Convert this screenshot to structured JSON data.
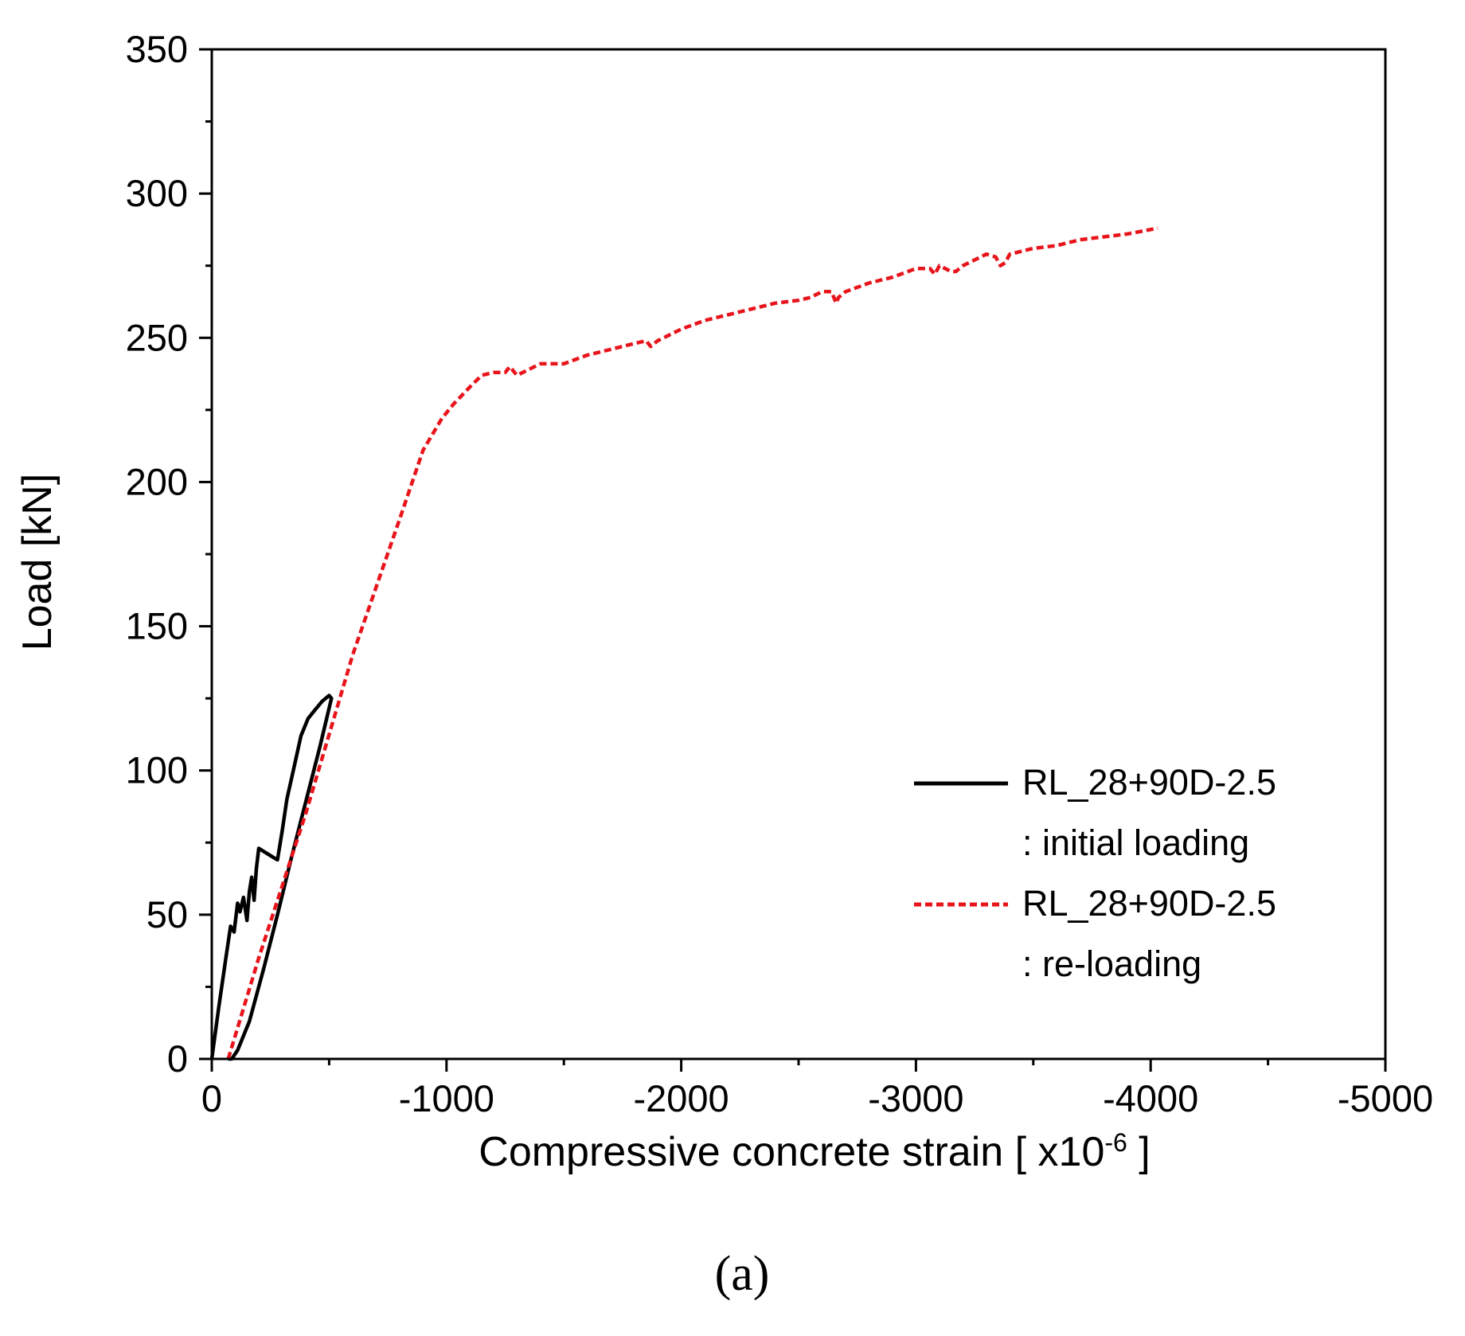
{
  "chart_data": {
    "type": "line",
    "title": "",
    "xlabel": "Compressive concrete strain [ x10",
    "xlabel_exponent": "-6",
    "xlabel_suffix": " ]",
    "ylabel": "Load [kN]",
    "xlim": [
      0,
      -5000
    ],
    "ylim": [
      0,
      350
    ],
    "x_ticks": [
      0,
      -1000,
      -2000,
      -3000,
      -4000,
      -5000
    ],
    "x_tick_labels": [
      "0",
      "-1000",
      "-2000",
      "-3000",
      "-4000",
      "-5000"
    ],
    "y_ticks": [
      0,
      50,
      100,
      150,
      200,
      250,
      300,
      350
    ],
    "y_tick_labels": [
      "0",
      "50",
      "100",
      "150",
      "200",
      "250",
      "300",
      "350"
    ],
    "grid": false,
    "legend_position": "bottom-right",
    "panel_label": "(a)",
    "series": [
      {
        "name": "RL_28+90D-2.5",
        "name_line2": ": initial loading",
        "color": "#000000",
        "style": "solid",
        "x": [
          0,
          -30,
          -60,
          -80,
          -95,
          -110,
          -120,
          -135,
          -150,
          -160,
          -170,
          -180,
          -190,
          -200,
          -220,
          -260,
          -280,
          -300,
          -320,
          -350,
          -380,
          -410,
          -440,
          -470,
          -500,
          -510,
          -460,
          -400,
          -340,
          -280,
          -220,
          -160,
          -110,
          -85,
          -70
        ],
        "y": [
          0,
          18,
          35,
          46,
          44,
          54,
          51,
          56,
          48,
          58,
          63,
          55,
          66,
          73,
          72,
          70,
          69,
          79,
          90,
          101,
          112,
          118,
          121,
          124,
          126,
          125,
          108,
          89,
          70,
          50,
          31,
          13,
          3,
          0,
          0
        ]
      },
      {
        "name": "RL_28+90D-2.5",
        "name_line2": ": re-loading",
        "color": "#e8141b",
        "style": "dashed",
        "x": [
          -70,
          -200,
          -400,
          -600,
          -800,
          -900,
          -980,
          -1030,
          -1100,
          -1150,
          -1200,
          -1250,
          -1270,
          -1300,
          -1400,
          -1500,
          -1600,
          -1700,
          -1800,
          -1850,
          -1870,
          -1900,
          -2000,
          -2100,
          -2200,
          -2300,
          -2400,
          -2500,
          -2550,
          -2600,
          -2640,
          -2660,
          -2670,
          -2700,
          -2800,
          -2900,
          -3000,
          -3060,
          -3080,
          -3100,
          -3150,
          -3170,
          -3200,
          -3250,
          -3300,
          -3340,
          -3360,
          -3380,
          -3400,
          -3500,
          -3600,
          -3700,
          -3800,
          -3900,
          -4030
        ],
        "y": [
          0,
          35,
          85,
          140,
          187,
          211,
          222,
          227,
          233,
          237,
          238,
          238,
          240,
          237,
          241,
          241,
          244,
          246,
          248,
          249,
          247,
          249,
          253,
          256,
          258,
          260,
          262,
          263,
          264,
          266,
          266,
          262,
          264,
          266,
          269,
          271,
          274,
          274,
          272,
          275,
          273,
          273,
          275,
          277,
          279,
          278,
          275,
          276,
          279,
          281,
          282,
          284,
          285,
          286,
          288
        ]
      }
    ]
  }
}
